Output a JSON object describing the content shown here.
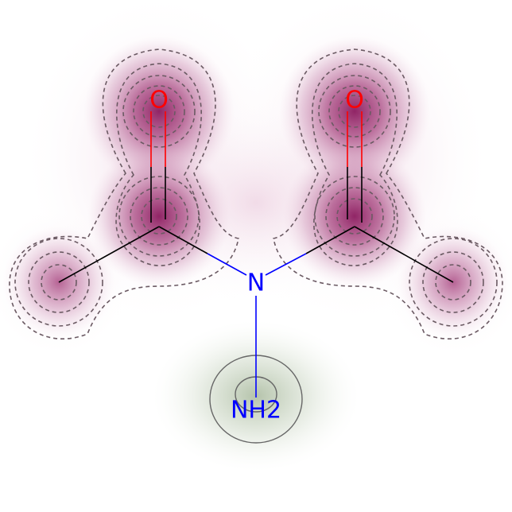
{
  "molecule": {
    "atoms": [
      {
        "id": "O1",
        "label": "O",
        "color": "#ff0000"
      },
      {
        "id": "O2",
        "label": "O",
        "color": "#ff0000"
      },
      {
        "id": "N",
        "label": "N",
        "color": "#0000ff"
      },
      {
        "id": "NH2",
        "label": "NH2",
        "color": "#0000ff"
      }
    ],
    "colors": {
      "carbon_bond": "#000000",
      "oxygen": "#ff0000",
      "nitrogen": "#0000ff",
      "negative_density": "#8b1a5e",
      "positive_density": "#5a7a44",
      "negative_contour": "#6b5a63",
      "positive_contour": "#666666"
    }
  }
}
